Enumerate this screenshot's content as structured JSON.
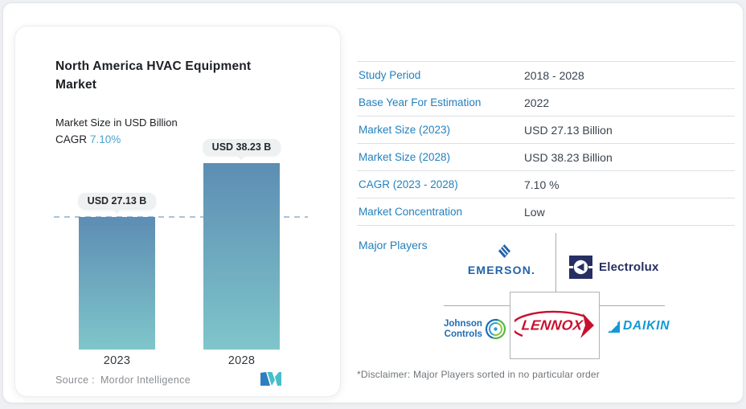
{
  "colors": {
    "text_dark": "#1c1f23",
    "accent_blue": "#2380bd",
    "cagr_blue": "#49a3cf",
    "value_text": "#3a4350",
    "separator": "#dcdfe2",
    "bar_top": "#5d8db3",
    "bar_bottom": "#7fc6ca",
    "dashed_line": "#a7c4de",
    "badge_bg": "#edf1f1",
    "grid_line": "#a9abae",
    "source_text": "#8a8e92",
    "disclaimer_text": "#6f7479",
    "emerson_blue": "#2263a9",
    "electrolux_navy": "#272f62",
    "johnson_blue": "#1e6db3",
    "johnson_green": "#54b948",
    "lennox_red": "#c8102e",
    "daikin_blue": "#0f9ad6",
    "mordor_blue": "#2d7fc1",
    "mordor_teal": "#45bfca"
  },
  "left_panel": {
    "title": "North America HVAC Equipment Market",
    "subtitle": "Market Size in USD Billion",
    "cagr_label": "CAGR",
    "cagr_value": "7.10%",
    "source_label": "Source :",
    "source_name": "Mordor Intelligence"
  },
  "chart_data": {
    "type": "bar",
    "categories": [
      "2023",
      "2028"
    ],
    "values": [
      27.13,
      38.23
    ],
    "value_labels": [
      "USD 27.13 B",
      "USD 38.23 B"
    ],
    "title": "North America HVAC Equipment Market",
    "ylabel": "Market Size in USD Billion",
    "unit": "USD Billion",
    "ylim": [
      0,
      40
    ],
    "reference_line": 27.13,
    "grid": false,
    "legend": "none"
  },
  "info_table": {
    "rows": [
      {
        "label": "Study Period",
        "value": "2018 - 2028"
      },
      {
        "label": "Base Year For Estimation",
        "value": "2022"
      },
      {
        "label": "Market Size (2023)",
        "value": "USD 27.13 Billion"
      },
      {
        "label": "Market Size (2028)",
        "value": "USD 38.23 Billion"
      },
      {
        "label": "CAGR (2023 - 2028)",
        "value": "7.10 %"
      },
      {
        "label": "Market Concentration",
        "value": "Low"
      }
    ]
  },
  "major_players": {
    "heading": "Major Players",
    "disclaimer": "*Disclaimer: Major Players sorted in no particular order",
    "players": [
      {
        "name": "Emerson",
        "text": "EMERSON."
      },
      {
        "name": "Electrolux",
        "text": "Electrolux"
      },
      {
        "name": "Johnson Controls",
        "line1": "Johnson",
        "line2": "Controls"
      },
      {
        "name": "Lennox",
        "text": "LENNOX"
      },
      {
        "name": "Daikin",
        "text": "DAIKIN"
      }
    ]
  }
}
